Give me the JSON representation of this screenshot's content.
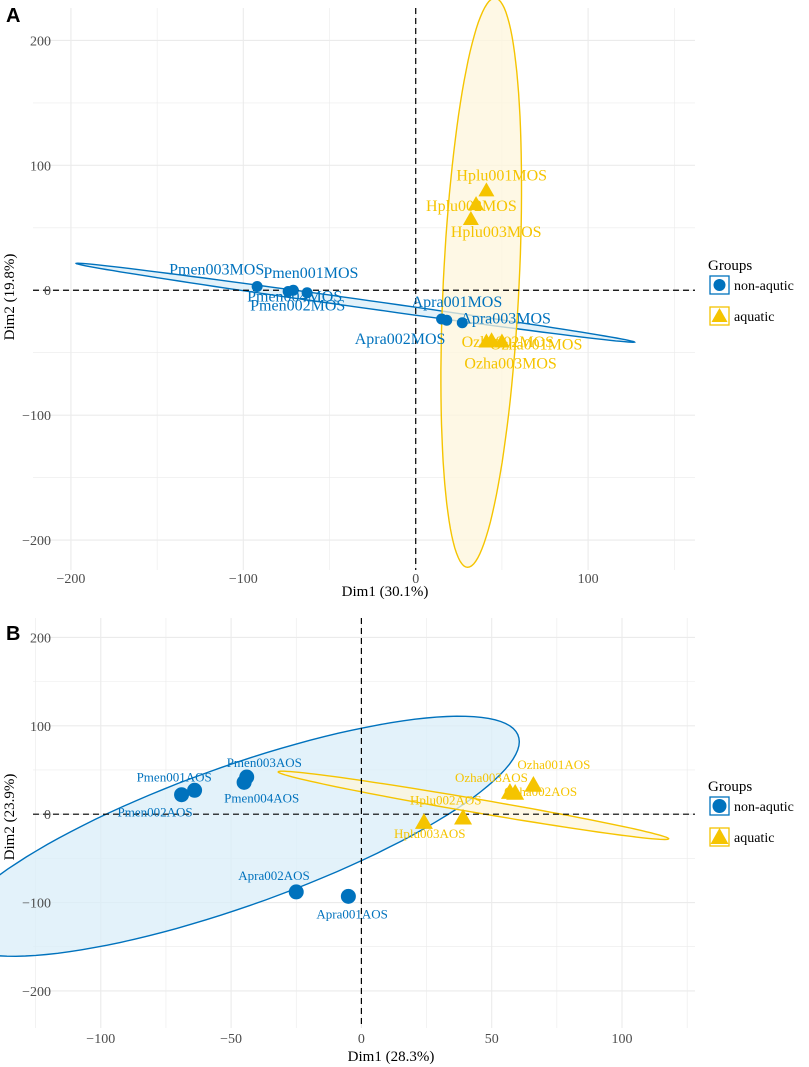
{
  "colors": {
    "blue": "#0072bd",
    "yellow": "#f5c400",
    "blue_fill": "#d9edf8",
    "yellow_fill": "#fdf5dc",
    "grid": "#ebebeb"
  },
  "chart_data": [
    {
      "type": "scatter",
      "panel": "A",
      "xlabel": "Dim1 (30.1%)",
      "ylabel": "Dim2 (19.8%)",
      "xlim": [
        -222,
        162
      ],
      "ylim": [
        -224,
        226
      ],
      "xticks": [
        -200,
        -100,
        0,
        100
      ],
      "yticks": [
        -200,
        -100,
        0,
        100,
        200
      ],
      "legend": {
        "title": "Groups",
        "position": "right",
        "entries": [
          "non-aqutic",
          "aquatic"
        ]
      },
      "series": [
        {
          "name": "non-aqutic",
          "points": [
            {
              "x": -92,
              "y": 3,
              "label": "Pmen003MOS"
            },
            {
              "x": -71,
              "y": 0,
              "label": "Pmen001MOS"
            },
            {
              "x": -74,
              "y": -1,
              "label": "Pmen002MOS"
            },
            {
              "x": -63,
              "y": -2,
              "label": "Pmen004MOS"
            },
            {
              "x": 15,
              "y": -23,
              "label": "Apra001MOS"
            },
            {
              "x": 18,
              "y": -24,
              "label": "Apra002MOS"
            },
            {
              "x": 27,
              "y": -26,
              "label": "Apra003MOS"
            }
          ],
          "ellipse": {
            "cx": -35,
            "cy": -10,
            "rx": 165,
            "ry": 3.2,
            "angle_deg": -11
          }
        },
        {
          "name": "aquatic",
          "points": [
            {
              "x": 41,
              "y": 80,
              "label": "Hplu001MOS"
            },
            {
              "x": 35,
              "y": 69,
              "label": "Hplu002MOS"
            },
            {
              "x": 32,
              "y": 57,
              "label": "Hplu003MOS"
            },
            {
              "x": 50,
              "y": -41,
              "label": "Ozha001MOS"
            },
            {
              "x": 44,
              "y": -40,
              "label": "Ozha002MOS"
            },
            {
              "x": 41,
              "y": -41,
              "label": "Ozha003MOS"
            }
          ],
          "ellipse": {
            "cx": 38,
            "cy": 6,
            "rx": 22,
            "ry": 228,
            "angle_deg": -2
          }
        }
      ]
    },
    {
      "type": "scatter",
      "panel": "B",
      "xlabel": "Dim1 (28.3%)",
      "ylabel": "Dim2 (23.9%)",
      "xlim": [
        -126,
        128
      ],
      "ylim": [
        -242,
        222
      ],
      "xticks": [
        -100,
        -50,
        0,
        50,
        100
      ],
      "yticks": [
        -200,
        -100,
        0,
        100,
        200
      ],
      "legend": {
        "title": "Groups",
        "position": "right",
        "entries": [
          "non-aqutic",
          "aquatic"
        ]
      },
      "series": [
        {
          "name": "non-aqutic",
          "points": [
            {
              "x": -69,
              "y": 22,
              "label": "Pmen002AOS"
            },
            {
              "x": -64,
              "y": 27,
              "label": "Pmen001AOS"
            },
            {
              "x": -44,
              "y": 42,
              "label": "Pmen003AOS"
            },
            {
              "x": -45,
              "y": 36,
              "label": "Pmen004AOS"
            },
            {
              "x": -25,
              "y": -88,
              "label": "Apra002AOS"
            },
            {
              "x": -5,
              "y": -93,
              "label": "Apra001AOS"
            }
          ],
          "ellipse": {
            "cx": -48,
            "cy": -25,
            "rx": 165,
            "ry": 55,
            "angle_deg": 53
          }
        },
        {
          "name": "aquatic",
          "points": [
            {
              "x": 24,
              "y": -9,
              "label": "Hplu003AOS"
            },
            {
              "x": 39,
              "y": -4,
              "label": "Hplu002AOS"
            },
            {
              "x": 57,
              "y": 25,
              "label": "Ozha003AOS"
            },
            {
              "x": 59,
              "y": 24,
              "label": "Ozha002AOS"
            },
            {
              "x": 66,
              "y": 33,
              "label": "Ozha001AOS"
            }
          ],
          "ellipse": {
            "cx": 43,
            "cy": 10,
            "rx": 84,
            "ry": 7,
            "angle_deg": -27
          }
        }
      ]
    }
  ]
}
